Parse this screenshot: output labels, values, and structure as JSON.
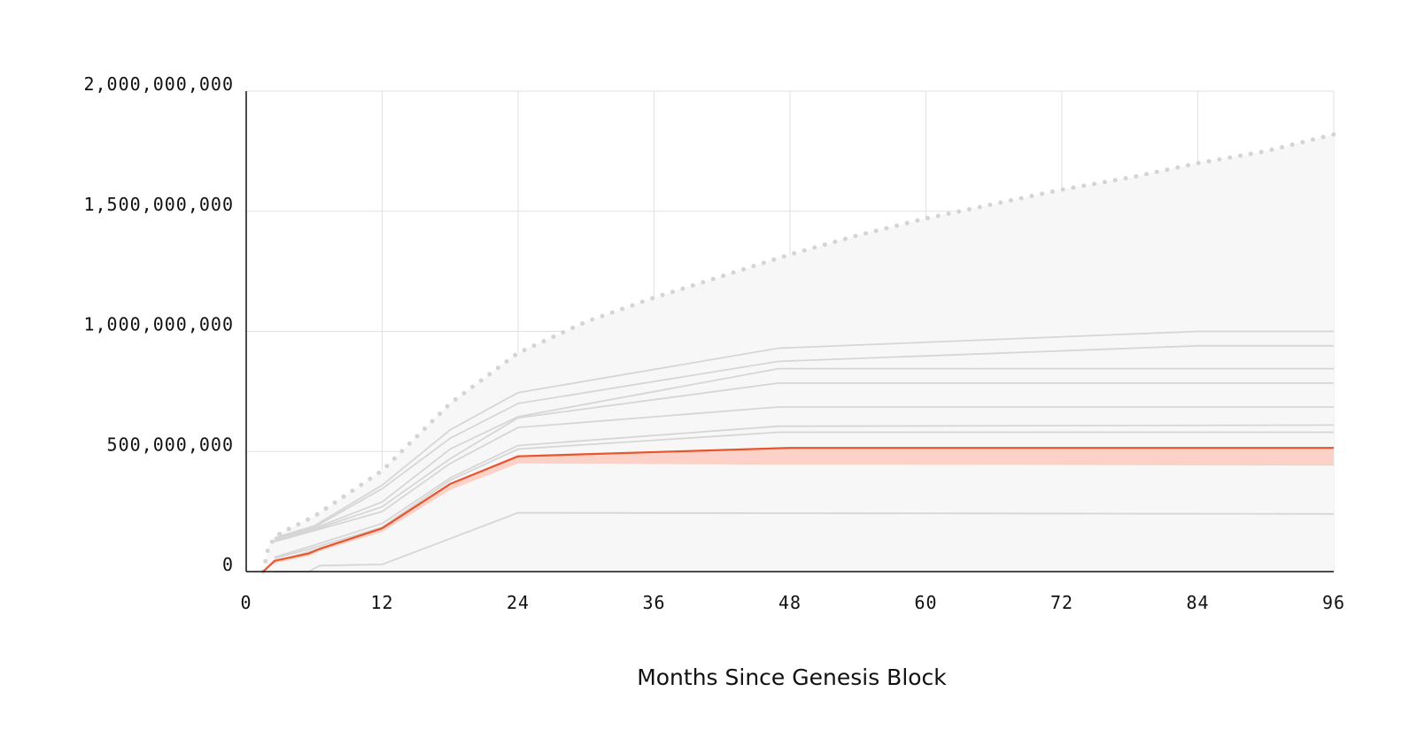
{
  "chart_data": {
    "type": "line",
    "title": "",
    "xlabel": "Months Since Genesis Block",
    "ylabel": "",
    "xlim": [
      0,
      96
    ],
    "ylim": [
      0,
      2000000000
    ],
    "x_ticks": [
      0,
      12,
      24,
      36,
      48,
      60,
      72,
      84,
      96
    ],
    "x_tick_labels": [
      "0",
      "12",
      "24",
      "36",
      "48",
      "60",
      "72",
      "84",
      "96"
    ],
    "y_ticks": [
      0,
      500000000,
      1000000000,
      1500000000,
      2000000000
    ],
    "y_tick_labels": [
      "0",
      "500,000,000",
      "1,000,000,000",
      "1,500,000,000",
      "2,000,000,000"
    ],
    "grid": true,
    "legend": "none",
    "colors": {
      "highlight": "#e8542c",
      "highlight_band": "#fcd2c8",
      "series": "#d6d6d6",
      "envelope_fill": "#f7f7f7",
      "envelope_line": "#d4d4d4",
      "grid": "#e2e2e2",
      "axis": "#111111"
    },
    "envelope": {
      "style": "dotted",
      "points": [
        [
          1.5,
          0
        ],
        [
          2,
          110000000
        ],
        [
          3,
          160000000
        ],
        [
          6,
          230000000
        ],
        [
          12,
          420000000
        ],
        [
          18,
          700000000
        ],
        [
          24,
          910000000
        ],
        [
          30,
          1040000000
        ],
        [
          36,
          1140000000
        ],
        [
          42,
          1230000000
        ],
        [
          48,
          1320000000
        ],
        [
          54,
          1400000000
        ],
        [
          60,
          1470000000
        ],
        [
          66,
          1530000000
        ],
        [
          72,
          1590000000
        ],
        [
          78,
          1640000000
        ],
        [
          84,
          1700000000
        ],
        [
          90,
          1750000000
        ],
        [
          96,
          1820000000
        ]
      ]
    },
    "series": [
      {
        "points": [
          [
            2.5,
            140000000
          ],
          [
            6,
            190000000
          ],
          [
            12,
            360000000
          ],
          [
            18,
            590000000
          ],
          [
            24,
            745000000
          ],
          [
            47,
            930000000
          ],
          [
            84,
            1000000000
          ],
          [
            96,
            1000000000
          ]
        ]
      },
      {
        "points": [
          [
            2.5,
            140000000
          ],
          [
            6,
            185000000
          ],
          [
            12,
            345000000
          ],
          [
            18,
            555000000
          ],
          [
            24,
            700000000
          ],
          [
            47,
            875000000
          ],
          [
            84,
            940000000
          ],
          [
            96,
            940000000
          ]
        ]
      },
      {
        "points": [
          [
            2.5,
            135000000
          ],
          [
            6,
            180000000
          ],
          [
            12,
            290000000
          ],
          [
            18,
            510000000
          ],
          [
            24,
            645000000
          ],
          [
            47,
            845000000
          ],
          [
            96,
            845000000
          ]
        ]
      },
      {
        "points": [
          [
            2.5,
            130000000
          ],
          [
            6,
            175000000
          ],
          [
            12,
            270000000
          ],
          [
            18,
            470000000
          ],
          [
            24,
            640000000
          ],
          [
            47,
            785000000
          ],
          [
            96,
            785000000
          ]
        ]
      },
      {
        "points": [
          [
            2.5,
            125000000
          ],
          [
            6,
            170000000
          ],
          [
            12,
            250000000
          ],
          [
            18,
            450000000
          ],
          [
            24,
            600000000
          ],
          [
            47,
            685000000
          ],
          [
            96,
            685000000
          ]
        ]
      },
      {
        "points": [
          [
            2.5,
            60000000
          ],
          [
            6,
            110000000
          ],
          [
            12,
            200000000
          ],
          [
            18,
            390000000
          ],
          [
            24,
            525000000
          ],
          [
            47,
            605000000
          ],
          [
            96,
            610000000
          ]
        ]
      },
      {
        "points": [
          [
            2.5,
            55000000
          ],
          [
            6,
            100000000
          ],
          [
            12,
            185000000
          ],
          [
            18,
            380000000
          ],
          [
            24,
            510000000
          ],
          [
            47,
            580000000
          ],
          [
            96,
            580000000
          ]
        ]
      },
      {
        "points": [
          [
            2.5,
            40000000
          ],
          [
            6,
            90000000
          ],
          [
            12,
            170000000
          ],
          [
            18,
            345000000
          ],
          [
            24,
            455000000
          ],
          [
            47,
            450000000
          ],
          [
            96,
            445000000
          ]
        ]
      },
      {
        "points": [
          [
            2.5,
            0
          ],
          [
            5.5,
            0
          ],
          [
            6.5,
            25000000
          ],
          [
            12,
            30000000
          ],
          [
            24,
            245000000
          ],
          [
            48,
            243000000
          ],
          [
            96,
            240000000
          ]
        ]
      }
    ],
    "highlight": {
      "points": [
        [
          1.5,
          0
        ],
        [
          2.5,
          45000000
        ],
        [
          5.5,
          75000000
        ],
        [
          6.5,
          95000000
        ],
        [
          12,
          180000000
        ],
        [
          18,
          365000000
        ],
        [
          24,
          480000000
        ],
        [
          48,
          515000000
        ],
        [
          96,
          515000000
        ]
      ],
      "band_lower": [
        [
          1.5,
          0
        ],
        [
          2.5,
          35000000
        ],
        [
          5.5,
          65000000
        ],
        [
          6.5,
          85000000
        ],
        [
          12,
          165000000
        ],
        [
          18,
          340000000
        ],
        [
          24,
          450000000
        ],
        [
          48,
          445000000
        ],
        [
          96,
          445000000
        ]
      ]
    }
  }
}
